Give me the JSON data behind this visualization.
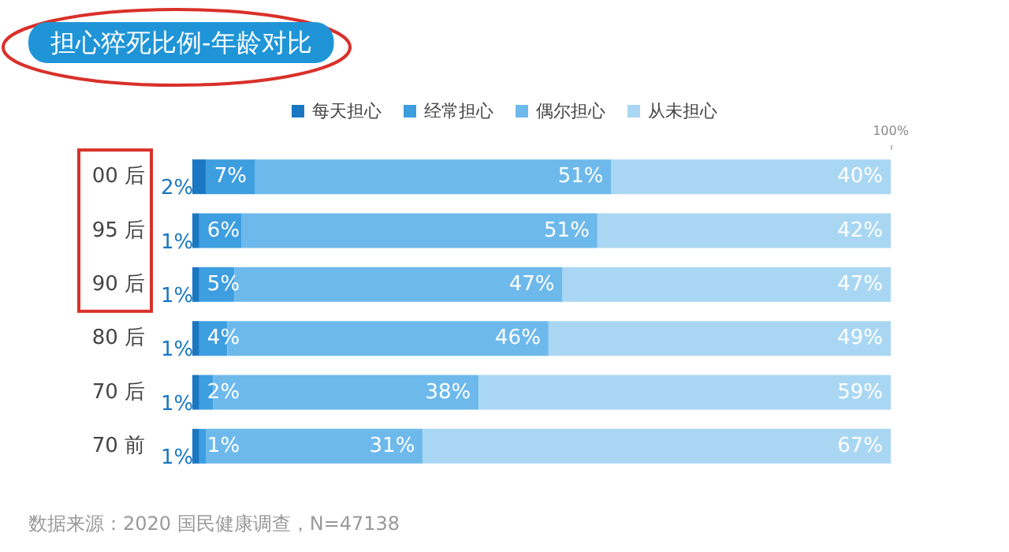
{
  "chart_data": {
    "type": "bar",
    "orientation": "horizontal",
    "stacked": true,
    "title": "担心猝死比例-年龄对比",
    "categories": [
      "00 后",
      "95 后",
      "90 后",
      "80 后",
      "70 后",
      "70 前"
    ],
    "xlim": [
      0,
      100
    ],
    "xticks": [
      {
        "value": 100,
        "label": "100%"
      }
    ],
    "tick_labels": "x_and_y",
    "grid": false,
    "legend": "top",
    "series": [
      {
        "name": "每天担心",
        "color": "#1a78c2",
        "values": [
          2,
          1,
          1,
          1,
          1,
          1
        ],
        "value_labels": [
          "2%",
          "1%",
          "1%",
          "1%",
          "1%",
          "1%"
        ]
      },
      {
        "name": "经常担心",
        "color": "#3d9ee0",
        "values": [
          7,
          6,
          5,
          4,
          2,
          1
        ],
        "value_labels": [
          "7%",
          "6%",
          "5%",
          "4%",
          "2%",
          "1%"
        ]
      },
      {
        "name": "偶尔担心",
        "color": "#6db9ec",
        "values": [
          51,
          51,
          47,
          46,
          38,
          31
        ],
        "value_labels": [
          "51%",
          "51%",
          "47%",
          "46%",
          "38%",
          "31%"
        ]
      },
      {
        "name": "从未担心",
        "color": "#a9d7f3",
        "values": [
          40,
          42,
          47,
          49,
          59,
          67
        ],
        "value_labels": [
          "40%",
          "42%",
          "47%",
          "49%",
          "59%",
          "67%"
        ]
      }
    ],
    "annotations": [
      "数据来源：2020 国民健康调查，N=47138"
    ]
  }
}
